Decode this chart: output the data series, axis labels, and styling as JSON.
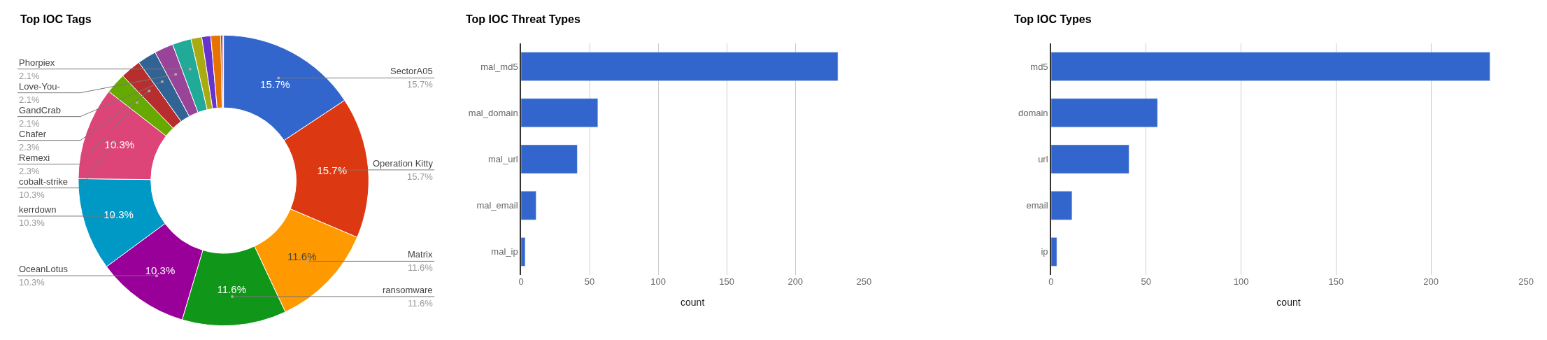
{
  "chart_data": [
    {
      "type": "donut",
      "title": "Top IOC Tags",
      "categories": [
        "SectorA05",
        "Operation Kitty",
        "Matrix",
        "ransomware",
        "OceanLotus",
        "kerrdown",
        "cobalt-strike",
        "Remexi",
        "Chafer",
        "GandCrab",
        "Love-You-",
        "Phorpiex",
        null,
        null,
        null,
        null,
        null
      ],
      "values": [
        15.7,
        15.7,
        11.6,
        11.6,
        10.3,
        10.3,
        10.3,
        2.3,
        2.3,
        2.1,
        2.1,
        2.1,
        1.2,
        1.0,
        1.1,
        0.2,
        0.1
      ],
      "value_labels": [
        "15.7%",
        "15.7%",
        "11.6%",
        "11.6%",
        "10.3%",
        "10.3%",
        "10.3%",
        "2.3%",
        "2.3%",
        "2.1%",
        "2.1%",
        "2.1%",
        null,
        null,
        null,
        null,
        null
      ],
      "colors": [
        "#3366cc",
        "#dc3912",
        "#ff9900",
        "#109618",
        "#990099",
        "#0099c6",
        "#dd4477",
        "#66aa00",
        "#b82e2e",
        "#316395",
        "#994499",
        "#22aa99",
        "#aaaa11",
        "#6633cc",
        "#e67300",
        "#8b0707",
        "#651067"
      ]
    },
    {
      "type": "bar",
      "orientation": "horizontal",
      "title": "Top IOC Threat Types",
      "xlabel": "count",
      "categories": [
        "mal_md5",
        "mal_domain",
        "mal_url",
        "mal_email",
        "mal_ip"
      ],
      "values": [
        231,
        56,
        41,
        11,
        3
      ],
      "color": "#3366cc",
      "xlim": [
        0,
        250
      ],
      "xticks": [
        0,
        50,
        100,
        150,
        200,
        250
      ],
      "grid": "x"
    },
    {
      "type": "bar",
      "orientation": "horizontal",
      "title": "Top IOC Types",
      "xlabel": "count",
      "categories": [
        "md5",
        "domain",
        "url",
        "email",
        "ip"
      ],
      "values": [
        231,
        56,
        41,
        11,
        3
      ],
      "color": "#3366cc",
      "xlim": [
        0,
        250
      ],
      "xticks": [
        0,
        50,
        100,
        150,
        200,
        250
      ],
      "grid": "x"
    }
  ]
}
